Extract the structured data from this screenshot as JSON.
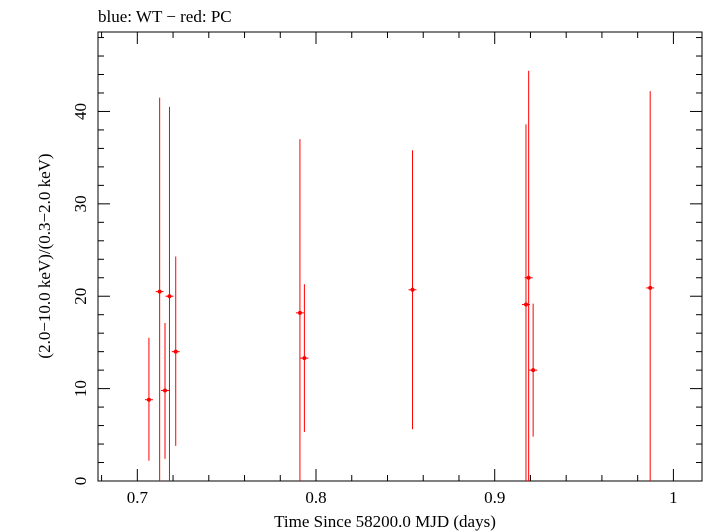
{
  "chart_data": {
    "type": "scatter",
    "title": "blue: WT − red: PC",
    "xlabel": "Time Since 58200.0 MJD (days)",
    "ylabel": "(2.0−10.0 keV)/(0.3−2.0 keV)",
    "xlim": [
      0.678,
      1.016
    ],
    "ylim": [
      0,
      48.6
    ],
    "x_ticks": [
      "0.7",
      "0.8",
      "0.9",
      "1"
    ],
    "y_ticks": [
      "0",
      "10",
      "20",
      "30",
      "40"
    ],
    "x_tick_values": [
      0.7,
      0.8,
      0.9,
      1.0
    ],
    "y_tick_values": [
      0,
      10,
      20,
      30,
      40
    ],
    "grid": false,
    "series": [
      {
        "name": "PC",
        "color": "#ff0000",
        "points": [
          {
            "x": 0.7065,
            "y": 8.8,
            "ylo": 2.2,
            "yhi": 15.5
          },
          {
            "x": 0.7125,
            "y": 20.5,
            "ylo": 0.0,
            "yhi": 41.5
          },
          {
            "x": 0.7155,
            "y": 9.8,
            "ylo": 2.4,
            "yhi": 17.1
          },
          {
            "x": 0.718,
            "y": 20.0,
            "ylo": 0.0,
            "yhi": 40.5
          },
          {
            "x": 0.7215,
            "y": 14.0,
            "ylo": 3.8,
            "yhi": 24.3
          },
          {
            "x": 0.791,
            "y": 18.2,
            "ylo": 0.0,
            "yhi": 37.0
          },
          {
            "x": 0.7935,
            "y": 13.3,
            "ylo": 5.3,
            "yhi": 21.3
          },
          {
            "x": 0.854,
            "y": 20.7,
            "ylo": 5.6,
            "yhi": 35.8
          },
          {
            "x": 0.9175,
            "y": 19.1,
            "ylo": 0.0,
            "yhi": 38.6
          },
          {
            "x": 0.919,
            "y": 22.0,
            "ylo": 0.0,
            "yhi": 44.4
          },
          {
            "x": 0.9215,
            "y": 12.0,
            "ylo": 4.8,
            "yhi": 19.2
          },
          {
            "x": 0.987,
            "y": 20.9,
            "ylo": 0.0,
            "yhi": 42.2
          }
        ]
      }
    ]
  }
}
